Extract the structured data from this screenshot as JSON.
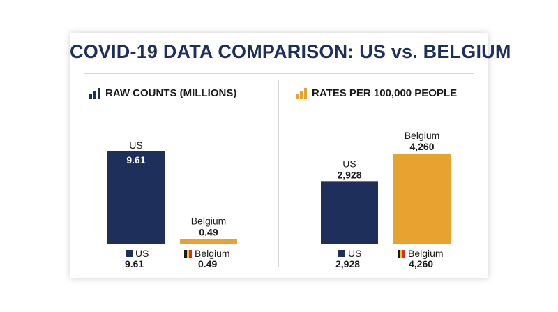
{
  "title": "COVID-19 DATA COMPARISON: US vs. BELGIUM",
  "colors": {
    "us": "#1e2f5b",
    "belgium": "#e8a22f",
    "text": "#1a1a1a",
    "bar_label_on_bar": "#ffffff"
  },
  "flag_colors": [
    "#1a1a1a",
    "#f2c624",
    "#d92a2a"
  ],
  "panels": {
    "raw": {
      "heading": "RAW COUNTS (MILLIONS)",
      "icon": "bar-chart-icon",
      "legend": {
        "us": {
          "label": "US",
          "value": "9.61"
        },
        "belgium": {
          "label": "Belgium",
          "value": "0.49"
        }
      }
    },
    "rates": {
      "heading": "RATES PER 100,000 PEOPLE",
      "icon": "bar-chart-icon",
      "legend": {
        "us": {
          "label": "US",
          "value": "2,928"
        },
        "belgium": {
          "label": "Belgium",
          "value": "4,260"
        }
      }
    }
  },
  "chart_data": [
    {
      "type": "bar",
      "title": "RAW COUNTS (MILLIONS)",
      "categories": [
        "US",
        "Belgium"
      ],
      "values": [
        9.61,
        0.49
      ],
      "value_labels": [
        "9.61",
        "0.49"
      ],
      "ylim": [
        0,
        10.55
      ],
      "grid": false,
      "legend_placement": "bottom"
    },
    {
      "type": "bar",
      "title": "RATES PER 100,000 PEOPLE",
      "categories": [
        "US",
        "Belgium"
      ],
      "values": [
        2928,
        4260
      ],
      "value_labels": [
        "2,928",
        "4,260"
      ],
      "ylim": [
        0,
        4790
      ],
      "grid": false,
      "legend_placement": "bottom"
    }
  ]
}
